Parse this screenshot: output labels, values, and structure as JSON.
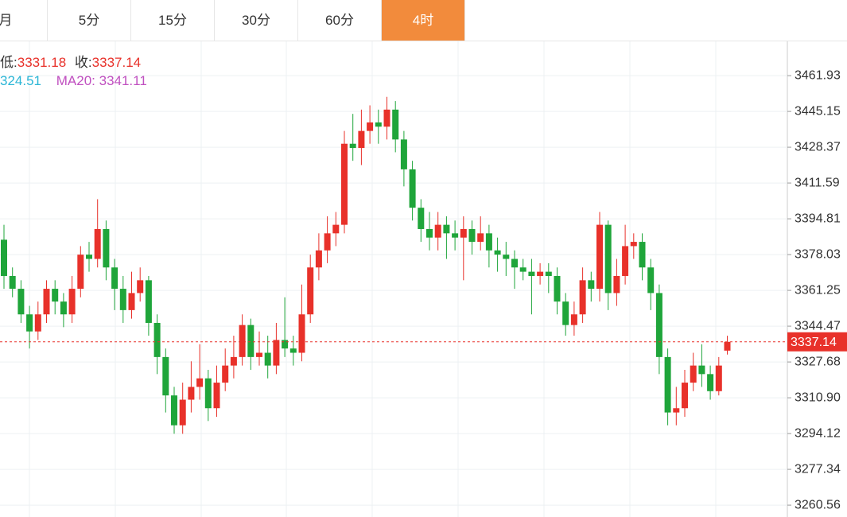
{
  "tabs": [
    "月",
    "5分",
    "15分",
    "30分",
    "60分",
    "4时"
  ],
  "active_tab": 5,
  "info": {
    "low_label": "低:",
    "low": 3331.18,
    "close_label": "收:",
    "close": 3337.14,
    "ma10_value": "324.51",
    "ma20_label": "MA20:",
    "ma20_value": 3341.11
  },
  "chart_data": {
    "type": "candlestick",
    "up_color": "#e8312a",
    "down_color": "#1fa53a",
    "ylim": [
      3255,
      3478
    ],
    "yticks": [
      3260.56,
      3277.34,
      3294.12,
      {
        "value": 3310.9,
        "label": "3310.90"
      },
      3327.68,
      3344.47,
      3361.25,
      3378.03,
      3394.81,
      3411.59,
      3428.37,
      3445.15,
      3461.93
    ],
    "grid": true,
    "last_price": 3337.14,
    "open": [
      3385,
      3368,
      3362,
      3350,
      3342,
      3350,
      3362,
      3356,
      3350,
      3362,
      3378,
      3376,
      3390,
      3372,
      3362,
      3352,
      3360,
      3366,
      3346,
      3330,
      3312,
      3298,
      3310,
      3316,
      3320,
      3306,
      3318,
      3326,
      3330,
      3345,
      3330,
      3332,
      3326,
      3338,
      3334,
      3332,
      3350,
      3372,
      3380,
      3388,
      3392,
      3430,
      3428,
      3436,
      3440,
      3438,
      3446,
      3432,
      3418,
      3400,
      3390,
      3386,
      3392,
      3388,
      3386,
      3390,
      3384,
      3388,
      3380,
      3378,
      3376,
      3372,
      3370,
      3368,
      3370,
      3368,
      3356,
      3345,
      3350,
      3366,
      3362,
      3392,
      3360,
      3368,
      3382,
      3384,
      3372,
      3360,
      3330,
      3304,
      3306,
      3318,
      3326,
      3322,
      3314,
      3333
    ],
    "high": [
      3392,
      3372,
      3366,
      3354,
      3356,
      3366,
      3366,
      3360,
      3368,
      3382,
      3384,
      3404,
      3394,
      3376,
      3368,
      3370,
      3372,
      3368,
      3350,
      3334,
      3316,
      3318,
      3328,
      3336,
      3324,
      3326,
      3334,
      3340,
      3350,
      3348,
      3342,
      3340,
      3346,
      3358,
      3340,
      3364,
      3378,
      3388,
      3396,
      3398,
      3436,
      3444,
      3446,
      3448,
      3446,
      3452,
      3450,
      3436,
      3422,
      3404,
      3398,
      3398,
      3396,
      3394,
      3396,
      3394,
      3396,
      3392,
      3386,
      3384,
      3380,
      3376,
      3376,
      3374,
      3374,
      3372,
      3360,
      3356,
      3372,
      3370,
      3398,
      3394,
      3376,
      3392,
      3388,
      3388,
      3376,
      3364,
      3334,
      3316,
      3324,
      3332,
      3336,
      3326,
      3330,
      3340
    ],
    "low": [
      3362,
      3358,
      3346,
      3334,
      3338,
      3346,
      3350,
      3344,
      3346,
      3358,
      3370,
      3372,
      3366,
      3352,
      3346,
      3348,
      3356,
      3340,
      3322,
      3304,
      3294,
      3294,
      3304,
      3310,
      3300,
      3302,
      3314,
      3320,
      3326,
      3324,
      3326,
      3320,
      3322,
      3330,
      3326,
      3328,
      3346,
      3366,
      3374,
      3382,
      3388,
      3422,
      3420,
      3430,
      3430,
      3432,
      3426,
      3410,
      3394,
      3384,
      3380,
      3380,
      3376,
      3380,
      3366,
      3378,
      3380,
      3372,
      3370,
      3368,
      3362,
      3366,
      3350,
      3364,
      3360,
      3350,
      3340,
      3340,
      3346,
      3356,
      3356,
      3352,
      3354,
      3364,
      3376,
      3366,
      3352,
      3322,
      3298,
      3298,
      3302,
      3314,
      3316,
      3310,
      3312,
      3331.18
    ],
    "close": [
      3368,
      3362,
      3350,
      3342,
      3350,
      3362,
      3356,
      3350,
      3362,
      3378,
      3376,
      3390,
      3372,
      3362,
      3352,
      3360,
      3366,
      3346,
      3330,
      3312,
      3298,
      3310,
      3316,
      3320,
      3306,
      3318,
      3326,
      3330,
      3345,
      3330,
      3332,
      3326,
      3338,
      3334,
      3332,
      3350,
      3372,
      3380,
      3388,
      3392,
      3430,
      3428,
      3436,
      3440,
      3438,
      3446,
      3432,
      3418,
      3400,
      3390,
      3386,
      3392,
      3388,
      3386,
      3390,
      3384,
      3388,
      3380,
      3378,
      3376,
      3372,
      3370,
      3368,
      3370,
      3368,
      3356,
      3345,
      3350,
      3366,
      3362,
      3392,
      3360,
      3368,
      3382,
      3384,
      3372,
      3360,
      3330,
      3304,
      3306,
      3318,
      3326,
      3322,
      3314,
      3326,
      3337.14
    ]
  }
}
